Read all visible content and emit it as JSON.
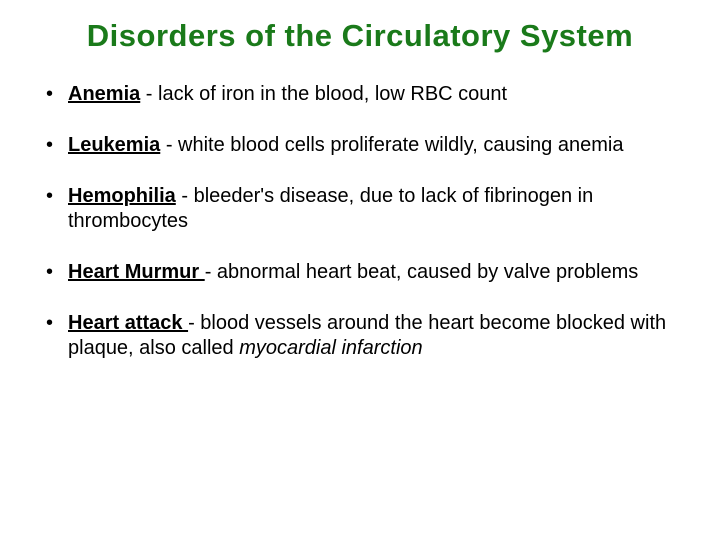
{
  "title": {
    "text": "Disorders of the Circulatory System",
    "color": "#1a7a1a"
  },
  "bullets": [
    {
      "term": "Anemia",
      "desc": " - lack of iron in the blood, low RBC count",
      "italic": ""
    },
    {
      "term": "Leukemia",
      "desc": " - white blood cells proliferate wildly, causing anemia",
      "italic": ""
    },
    {
      "term": "Hemophilia",
      "desc": " -  bleeder's disease, due to lack of fibrinogen in thrombocytes",
      "italic": ""
    },
    {
      "term": "Heart Murmur ",
      "desc": "- abnormal heart beat, caused by valve problems",
      "italic": ""
    },
    {
      "term": "Heart attack ",
      "desc": "-  blood vessels around the heart become blocked with plaque, also called ",
      "italic": "myocardial infarction"
    }
  ],
  "colors": {
    "title": "#1a7a1a",
    "text": "#000000",
    "background": "#ffffff"
  },
  "fonts": {
    "title_size": 31,
    "body_size": 20,
    "family": "Comic Sans MS"
  }
}
